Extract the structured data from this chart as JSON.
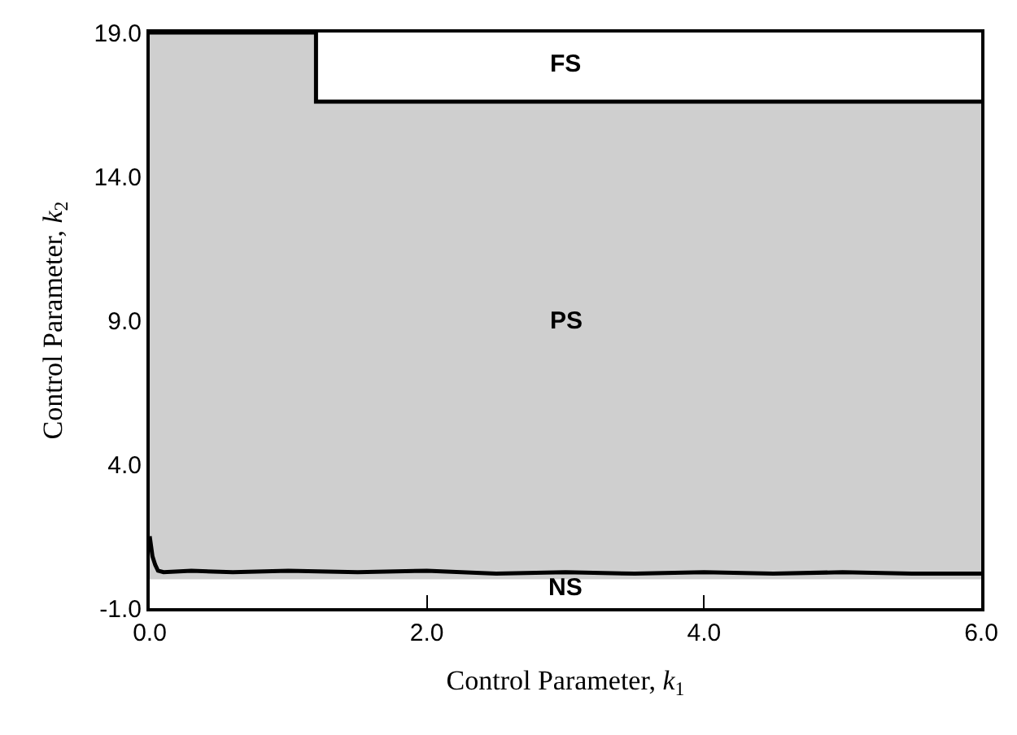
{
  "chart_data": {
    "type": "area",
    "xlabel": "Control Parameter, k$_{1}$",
    "ylabel": "Control Parameter, k$_{2}$",
    "series": [
      {
        "type": "line",
        "color": "#000000",
        "x": [
          0,
          0.02,
          0.04,
          0.06,
          0.1,
          0.3,
          0.6,
          1.0,
          1.5,
          2.0,
          2.5,
          3.0,
          3.5,
          4.0,
          4.5,
          5.0,
          5.5,
          6.0
        ],
        "values": [
          1.5,
          0.8,
          0.5,
          0.3,
          0.25,
          0.3,
          0.25,
          0.3,
          0.25,
          0.3,
          0.2,
          0.25,
          0.2,
          0.25,
          0.2,
          0.25,
          0.2,
          0.2
        ]
      },
      {
        "color": "#cfcfcf",
        "x": [
          0,
          1.2,
          1.2,
          6.0
        ],
        "values": [
          19,
          19,
          16.6,
          16.6
        ]
      }
    ],
    "annotations": [
      "FS",
      "PS",
      "NS"
    ],
    "xlim": [
      0,
      6
    ],
    "ylim": [
      -1,
      19
    ],
    "xticks": [
      {
        "value": 0,
        "label": "0.0"
      },
      {
        "value": 2,
        "label": "2.0"
      },
      {
        "value": 4,
        "label": "4.0"
      },
      {
        "value": 6,
        "label": "6.0"
      }
    ],
    "yticks": [
      {
        "value": -1,
        "label": "-1.0"
      },
      {
        "value": 4,
        "label": "4.0"
      },
      {
        "value": 9,
        "label": "9.0"
      },
      {
        "value": 14,
        "label": "14.0"
      },
      {
        "value": 19,
        "label": "19.0"
      }
    ],
    "marker": "none",
    "line_style": "solid"
  }
}
